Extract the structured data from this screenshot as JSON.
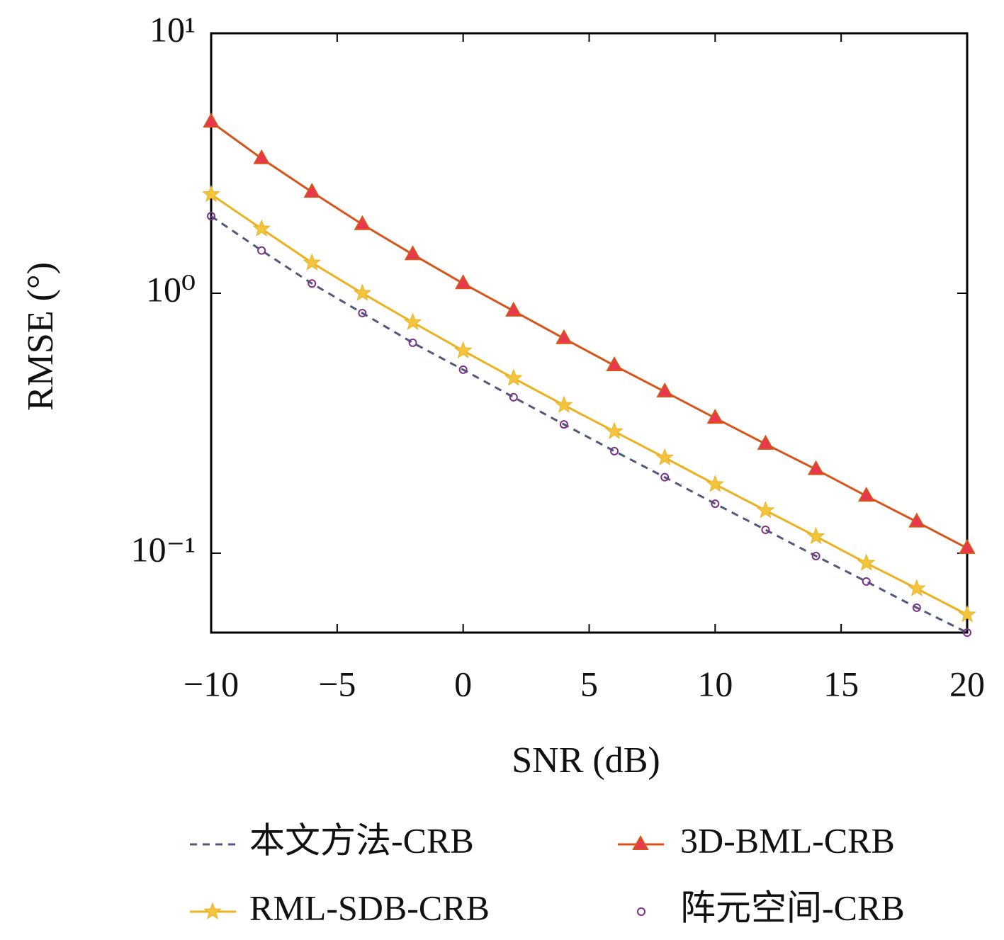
{
  "chart_data": {
    "type": "line",
    "x_label": "SNR (dB)",
    "y_label": "RMSE (°)",
    "x": [
      -10,
      -8,
      -6,
      -4,
      -2,
      0,
      2,
      4,
      6,
      8,
      10,
      12,
      14,
      16,
      18,
      20
    ],
    "xlim": [
      -10,
      20
    ],
    "xticks": [
      {
        "value": -10,
        "label": "−10"
      },
      {
        "value": -5,
        "label": "−5"
      },
      0,
      5,
      10,
      15,
      20
    ],
    "ylim": [
      0.0495,
      10
    ],
    "yticks": [
      {
        "value": 0.1,
        "label": "10⁻¹"
      },
      {
        "value": 1,
        "label": "10⁰"
      },
      {
        "value": 10,
        "label": "10¹"
      }
    ],
    "log_y": true,
    "legend": "bottom",
    "series": [
      {
        "name": "本文方法-CRB",
        "color": "#4d5a7c",
        "style": "dashed",
        "marker": "none",
        "values": [
          1.98,
          1.46,
          1.09,
          0.839,
          0.645,
          0.508,
          0.398,
          0.313,
          0.247,
          0.196,
          0.155,
          0.123,
          0.0975,
          0.0778,
          0.0617,
          0.0495
        ]
      },
      {
        "name": "3D-BML-CRB",
        "color": "#d95319",
        "style": "solid",
        "marker": "triangle",
        "marker_color": "#e8384f",
        "values": [
          4.56,
          3.3,
          2.45,
          1.84,
          1.41,
          1.09,
          0.855,
          0.67,
          0.527,
          0.418,
          0.331,
          0.263,
          0.21,
          0.166,
          0.132,
          0.1045
        ]
      },
      {
        "name": "RML-SDB-CRB",
        "color": "#edb120",
        "style": "solid",
        "marker": "star",
        "marker_color": "#f2c53d",
        "values": [
          2.4,
          1.77,
          1.31,
          1.0,
          0.773,
          0.601,
          0.471,
          0.371,
          0.294,
          0.233,
          0.184,
          0.146,
          0.116,
          0.0916,
          0.0731,
          0.058
        ]
      },
      {
        "name": "阵元空间-CRB",
        "color": "#7e2f8e",
        "style": "none",
        "marker": "circle",
        "values": [
          1.98,
          1.46,
          1.09,
          0.839,
          0.645,
          0.508,
          0.398,
          0.313,
          0.247,
          0.196,
          0.155,
          0.123,
          0.0975,
          0.0778,
          0.0617,
          0.0495
        ]
      }
    ]
  }
}
